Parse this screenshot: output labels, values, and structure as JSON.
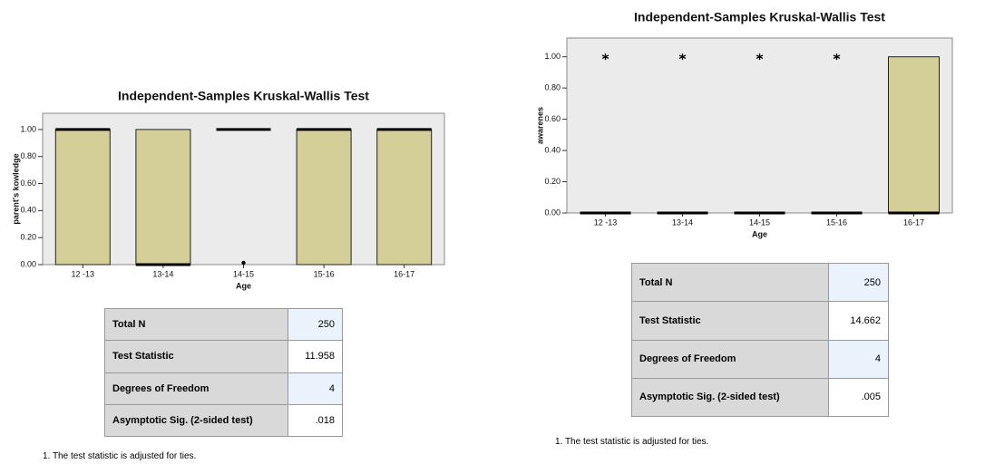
{
  "chart_data": [
    {
      "type": "box",
      "title": "Independent-Samples Kruskal-Wallis Test",
      "x_label": "Age",
      "y_label": "parent's kowledge",
      "categories": [
        "12 -13",
        "13-14",
        "14-15",
        "15-16",
        "16-17"
      ],
      "q1": [
        0,
        0,
        1,
        0,
        0
      ],
      "median": [
        1,
        0,
        1,
        1,
        1
      ],
      "q3": [
        1,
        1,
        1,
        1,
        1
      ],
      "outliers": [
        [],
        [],
        [
          0
        ],
        [],
        []
      ],
      "outlier_marker": "dot",
      "color": "#d4cf98",
      "background": "#ebebeb",
      "ylim": [
        0,
        1.12
      ],
      "yticks": [
        {
          "value": 0,
          "label": "0.00"
        },
        {
          "value": 0.2,
          "label": "0.20"
        },
        {
          "value": 0.4,
          "label": "0.40"
        },
        {
          "value": 0.6,
          "label": "0.60"
        },
        {
          "value": 0.8,
          "label": "0.80"
        },
        {
          "value": 1,
          "label": "1.00"
        }
      ]
    },
    {
      "type": "box",
      "title": "Independent-Samples Kruskal-Wallis Test",
      "x_label": "Age",
      "y_label": "awarenes",
      "categories": [
        "12 -13",
        "13-14",
        "14-15",
        "15-16",
        "16-17"
      ],
      "q1": [
        0,
        0,
        0,
        0,
        0
      ],
      "median": [
        0,
        0,
        0,
        0,
        0
      ],
      "q3": [
        0,
        0,
        0,
        0,
        1
      ],
      "outliers": [
        [
          1
        ],
        [
          1
        ],
        [
          1
        ],
        [
          1
        ],
        []
      ],
      "outlier_marker": "star",
      "color": "#d4cf98",
      "background": "#ebebeb",
      "ylim": [
        0,
        1.12
      ],
      "yticks": [
        {
          "value": 0,
          "label": "0.00"
        },
        {
          "value": 0.2,
          "label": "0.20"
        },
        {
          "value": 0.4,
          "label": "0.40"
        },
        {
          "value": 0.6,
          "label": "0.60"
        },
        {
          "value": 0.8,
          "label": "0.80"
        },
        {
          "value": 1,
          "label": "1.00"
        }
      ]
    }
  ],
  "tables": [
    {
      "rows": [
        [
          "Total N",
          "250"
        ],
        [
          "Test Statistic",
          "11.958"
        ],
        [
          "Degrees of Freedom",
          "4"
        ],
        [
          "Asymptotic Sig. (2-sided test)",
          ".018"
        ]
      ]
    },
    {
      "rows": [
        [
          "Total N",
          "250"
        ],
        [
          "Test Statistic",
          "14.662"
        ],
        [
          "Degrees of Freedom",
          "4"
        ],
        [
          "Asymptotic Sig. (2-sided test)",
          ".005"
        ]
      ]
    }
  ],
  "footnotes": [
    "1.  The test statistic is adjusted for ties.",
    "1.  The test statistic is adjusted for ties."
  ]
}
